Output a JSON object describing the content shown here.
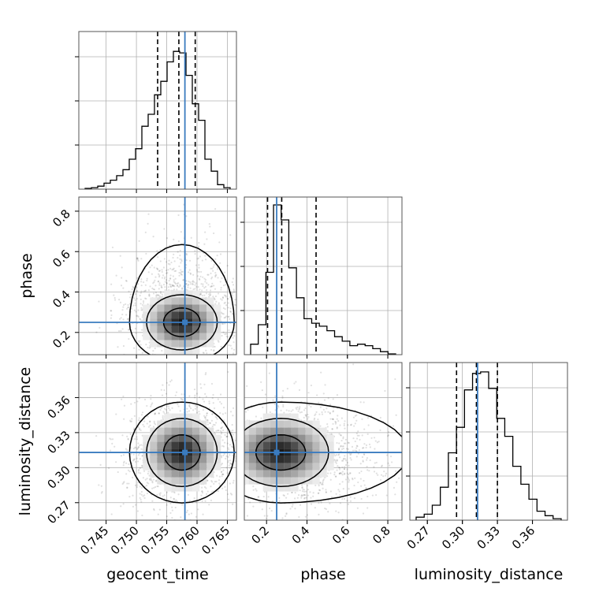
{
  "chart_data": {
    "type": "corner",
    "parameters": [
      "geocent_time",
      "phase",
      "luminosity_distance"
    ],
    "truth": {
      "geocent_time": 0.758,
      "phase": 0.25,
      "luminosity_distance": 0.313
    },
    "ranges": {
      "geocent_time": [
        0.7405,
        0.7665
      ],
      "phase": [
        0.09,
        0.87
      ],
      "luminosity_distance": [
        0.255,
        0.39
      ]
    },
    "ticks": {
      "geocent_time": [
        "0.745",
        "0.750",
        "0.755",
        "0.760",
        "0.765"
      ],
      "phase": [
        "0.2",
        "0.4",
        "0.6",
        "0.8"
      ],
      "luminosity_distance": [
        "0.27",
        "0.30",
        "0.33",
        "0.36"
      ]
    },
    "quantiles": {
      "geocent_time": [
        0.7535,
        0.757,
        0.7597
      ],
      "phase": [
        0.205,
        0.275,
        0.445
      ],
      "luminosity_distance": [
        0.295,
        0.312,
        0.33
      ]
    },
    "histograms": {
      "geocent_time": [
        0.005,
        0.01,
        0.02,
        0.04,
        0.06,
        0.09,
        0.13,
        0.2,
        0.27,
        0.42,
        0.5,
        0.63,
        0.72,
        0.85,
        0.92,
        0.91,
        0.76,
        0.57,
        0.46,
        0.2,
        0.12,
        0.03,
        0.01
      ],
      "phase": [
        0.07,
        0.2,
        0.55,
        1.0,
        0.9,
        0.58,
        0.38,
        0.24,
        0.21,
        0.19,
        0.16,
        0.12,
        0.09,
        0.06,
        0.07,
        0.06,
        0.04,
        0.02,
        0.005
      ],
      "luminosity_distance": [
        0.02,
        0.04,
        0.1,
        0.22,
        0.45,
        0.62,
        0.87,
        0.98,
        0.99,
        0.88,
        0.68,
        0.56,
        0.36,
        0.24,
        0.14,
        0.06,
        0.03,
        0.01
      ]
    }
  },
  "labels": {
    "geocent_time": "geocent_time",
    "phase": "phase",
    "luminosity_distance": "luminosity_distance"
  }
}
